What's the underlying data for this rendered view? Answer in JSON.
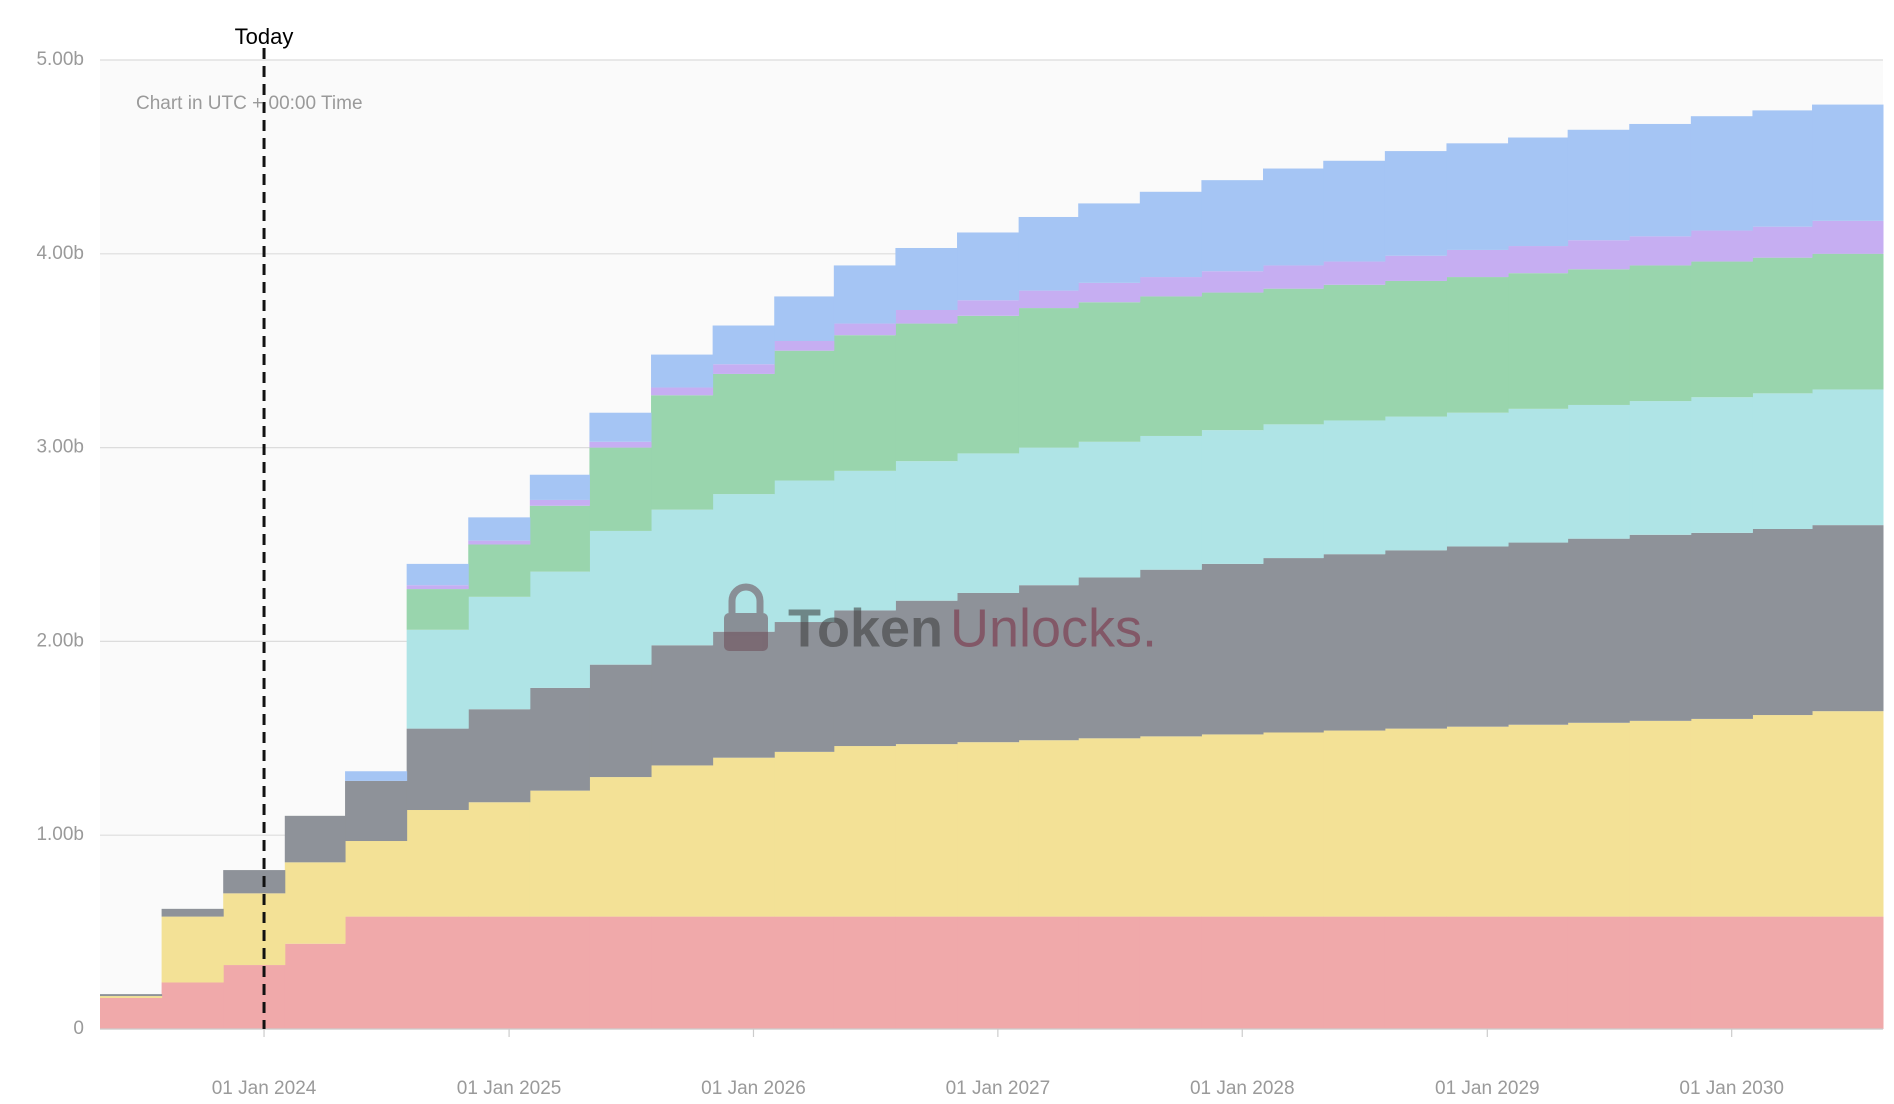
{
  "chart_data": {
    "type": "stacked-step-area",
    "note": "Chart in UTC + 00:00 Time",
    "watermark": [
      "Token",
      "Unlocks."
    ],
    "annotation": {
      "text": "Today",
      "x": "2024-01-01"
    },
    "x": [
      "2023-05-01",
      "2023-08-01",
      "2023-11-01",
      "2024-02-01",
      "2024-05-01",
      "2024-08-01",
      "2024-11-01",
      "2025-02-01",
      "2025-05-01",
      "2025-08-01",
      "2025-11-01",
      "2026-02-01",
      "2026-05-01",
      "2026-08-01",
      "2026-11-01",
      "2027-02-01",
      "2027-05-01",
      "2027-08-01",
      "2027-11-01",
      "2028-02-01",
      "2028-05-01",
      "2028-08-01",
      "2028-11-01",
      "2029-02-01",
      "2029-05-01",
      "2029-08-01",
      "2029-11-01",
      "2030-02-01",
      "2030-05-01"
    ],
    "xlim": [
      "2023-05-01",
      "2030-08-15"
    ],
    "xticks": [
      {
        "value": "2024-01-01",
        "label": "01 Jan 2024"
      },
      {
        "value": "2025-01-01",
        "label": "01 Jan 2025"
      },
      {
        "value": "2026-01-01",
        "label": "01 Jan 2026"
      },
      {
        "value": "2027-01-01",
        "label": "01 Jan 2027"
      },
      {
        "value": "2028-01-01",
        "label": "01 Jan 2028"
      },
      {
        "value": "2029-01-01",
        "label": "01 Jan 2029"
      },
      {
        "value": "2030-01-01",
        "label": "01 Jan 2030"
      }
    ],
    "ylim": [
      0,
      5
    ],
    "yticks": [
      0,
      {
        "value": 1,
        "label": "1.00b"
      },
      {
        "value": 2,
        "label": "2.00b"
      },
      {
        "value": 3,
        "label": "3.00b"
      },
      {
        "value": 4,
        "label": "4.00b"
      },
      {
        "value": 5,
        "label": "5.00b"
      }
    ],
    "grid": true,
    "series": [
      {
        "color": "#f0a9aa",
        "values": [
          0.16,
          0.24,
          0.33,
          0.44,
          0.58,
          0.58,
          0.58,
          0.58,
          0.58,
          0.58,
          0.58,
          0.58,
          0.58,
          0.58,
          0.58,
          0.58,
          0.58,
          0.58,
          0.58,
          0.58,
          0.58,
          0.58,
          0.58,
          0.58,
          0.58,
          0.58,
          0.58,
          0.58,
          0.58
        ]
      },
      {
        "color": "#f3e196",
        "values": [
          0.01,
          0.34,
          0.37,
          0.42,
          0.39,
          0.55,
          0.59,
          0.65,
          0.72,
          0.78,
          0.82,
          0.85,
          0.88,
          0.89,
          0.9,
          0.91,
          0.92,
          0.93,
          0.94,
          0.95,
          0.96,
          0.97,
          0.98,
          0.99,
          1.0,
          1.01,
          1.02,
          1.04,
          1.06
        ]
      },
      {
        "color": "#8e9299",
        "values": [
          0.01,
          0.04,
          0.12,
          0.24,
          0.31,
          0.42,
          0.48,
          0.53,
          0.58,
          0.62,
          0.65,
          0.67,
          0.7,
          0.74,
          0.77,
          0.8,
          0.83,
          0.86,
          0.88,
          0.9,
          0.91,
          0.92,
          0.93,
          0.94,
          0.95,
          0.96,
          0.96,
          0.96,
          0.96
        ]
      },
      {
        "color": "#afe4e6",
        "values": [
          0,
          0,
          0,
          0,
          0,
          0.51,
          0.58,
          0.6,
          0.69,
          0.7,
          0.71,
          0.73,
          0.72,
          0.72,
          0.72,
          0.71,
          0.7,
          0.69,
          0.69,
          0.69,
          0.69,
          0.69,
          0.69,
          0.69,
          0.69,
          0.69,
          0.7,
          0.7,
          0.7
        ]
      },
      {
        "color": "#99d5ad",
        "values": [
          0,
          0,
          0,
          0,
          0,
          0.21,
          0.27,
          0.34,
          0.43,
          0.59,
          0.62,
          0.67,
          0.7,
          0.71,
          0.71,
          0.72,
          0.72,
          0.72,
          0.71,
          0.7,
          0.7,
          0.7,
          0.7,
          0.7,
          0.7,
          0.7,
          0.7,
          0.7,
          0.7
        ]
      },
      {
        "color": "#c6aef2",
        "values": [
          0,
          0,
          0,
          0,
          0,
          0.02,
          0.02,
          0.03,
          0.03,
          0.04,
          0.05,
          0.05,
          0.06,
          0.07,
          0.08,
          0.09,
          0.1,
          0.1,
          0.11,
          0.12,
          0.12,
          0.13,
          0.14,
          0.14,
          0.15,
          0.15,
          0.16,
          0.16,
          0.17
        ]
      },
      {
        "color": "#a5c5f4",
        "values": [
          0,
          0,
          0,
          0,
          0.05,
          0.11,
          0.12,
          0.13,
          0.15,
          0.17,
          0.2,
          0.23,
          0.3,
          0.32,
          0.35,
          0.38,
          0.41,
          0.44,
          0.47,
          0.5,
          0.52,
          0.54,
          0.55,
          0.56,
          0.57,
          0.58,
          0.59,
          0.6,
          0.6
        ]
      }
    ]
  }
}
